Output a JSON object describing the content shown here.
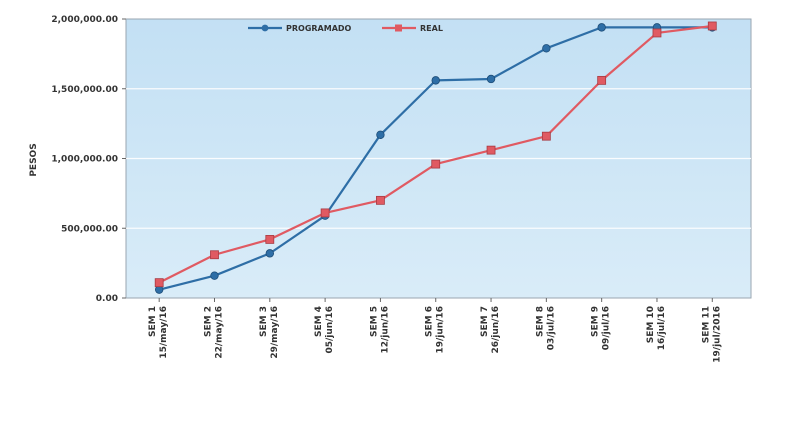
{
  "chart_data": {
    "type": "line",
    "title": "",
    "xlabel": "",
    "ylabel": "PESOS",
    "ylim": [
      0,
      2000000
    ],
    "yticks": [
      "0.00",
      "500,000.00",
      "1,000,000.00",
      "1,500,000.00",
      "2,000,000.00"
    ],
    "ytick_values": [
      0,
      500000,
      1000000,
      1500000,
      2000000
    ],
    "categories": [
      [
        "SEM 1",
        "15/may/16"
      ],
      [
        "SEM 2",
        "22/may/16"
      ],
      [
        "SEM 3",
        "29/may/16"
      ],
      [
        "SEM 4",
        "05/jun/16"
      ],
      [
        "SEM 5",
        "12/jun/16"
      ],
      [
        "SEM 6",
        "19/jun/16"
      ],
      [
        "SEM 7",
        "26/jun/16"
      ],
      [
        "SEM 8",
        "03/jul/16"
      ],
      [
        "SEM 9",
        "09/jul/16"
      ],
      [
        "SEM 10",
        "16/jul/16"
      ],
      [
        "SEM 11",
        "19/jul/2016"
      ]
    ],
    "series": [
      {
        "name": "PROGRAMADO",
        "color": "#2e6ea6",
        "marker": "circle",
        "values": [
          60000,
          160000,
          320000,
          590000,
          1170000,
          1560000,
          1570000,
          1790000,
          1940000,
          1940000,
          1940000
        ]
      },
      {
        "name": "REAL",
        "color": "#e05a62",
        "marker": "square",
        "values": [
          110000,
          310000,
          420000,
          610000,
          700000,
          960000,
          1060000,
          1160000,
          1560000,
          1900000,
          1950000
        ]
      }
    ],
    "legend": "top-center",
    "grid": true,
    "plot_background": "#cce4f5"
  }
}
